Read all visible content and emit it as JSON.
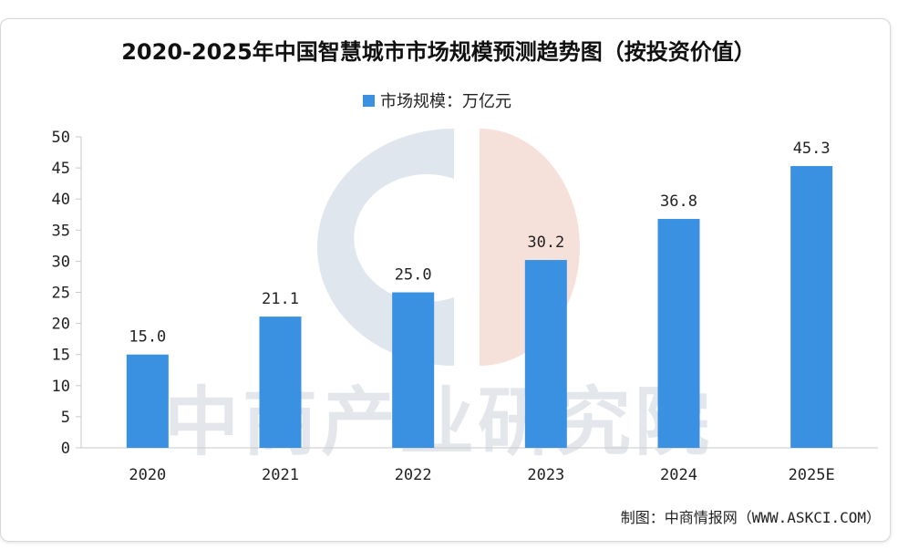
{
  "chart_data": {
    "type": "bar",
    "title": "2020-2025年中国智慧城市市场规模预测趋势图（按投资价值）",
    "categories": [
      "2020",
      "2021",
      "2022",
      "2023",
      "2024",
      "2025E"
    ],
    "series": [
      {
        "name": "市场规模：万亿元",
        "values": [
          15.0,
          21.1,
          25.0,
          30.2,
          36.8,
          45.3
        ]
      }
    ],
    "data_labels": [
      "15.0",
      "21.1",
      "25.0",
      "30.2",
      "36.8",
      "45.3"
    ],
    "ylim": [
      0,
      50
    ],
    "yticks": [
      0,
      5,
      10,
      15,
      20,
      25,
      30,
      35,
      40,
      45,
      50
    ],
    "xlabel": "",
    "ylabel": "",
    "grid": false,
    "legend_position": "top-center",
    "bar_color": "#3b91e1"
  },
  "source_credit": "制图：中商情报网（WWW.ASKCI.COM）",
  "watermark": "中商产业研究院"
}
